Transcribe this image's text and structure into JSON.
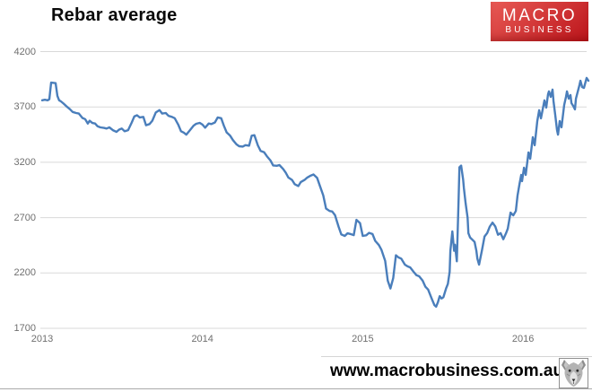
{
  "header": {
    "title": "Rebar average"
  },
  "logo": {
    "line1": "MACRO",
    "line2": "BUSINESS",
    "bg_gradient_from": "#e85a55",
    "bg_gradient_to": "#bc151b",
    "text_color": "#ffffff"
  },
  "footer": {
    "website": "www.macrobusiness.com.au",
    "icon": "wolf-head-icon"
  },
  "chart_data": {
    "type": "line",
    "title": "Rebar average",
    "xlabel": "",
    "ylabel": "",
    "ylim": [
      1700,
      4200
    ],
    "xlim": [
      2013.0,
      2016.42
    ],
    "grid": "horizontal",
    "legend": "none",
    "gridline_color": "#d9d9d9",
    "axis_label_color": "#6f6f6f",
    "y_ticks": [
      4200,
      3700,
      3200,
      2700,
      2200,
      1700
    ],
    "x_ticks": [
      2013,
      2014,
      2015,
      2016
    ],
    "series": [
      {
        "name": "Rebar average",
        "color": "#4a7ebb",
        "points": [
          [
            2013.0,
            3760
          ],
          [
            2013.017,
            3765
          ],
          [
            2013.034,
            3760
          ],
          [
            2013.045,
            3770
          ],
          [
            2013.056,
            3920
          ],
          [
            2013.084,
            3915
          ],
          [
            2013.095,
            3800
          ],
          [
            2013.106,
            3760
          ],
          [
            2013.117,
            3750
          ],
          [
            2013.134,
            3730
          ],
          [
            2013.156,
            3700
          ],
          [
            2013.173,
            3680
          ],
          [
            2013.19,
            3655
          ],
          [
            2013.212,
            3645
          ],
          [
            2013.229,
            3640
          ],
          [
            2013.251,
            3600
          ],
          [
            2013.268,
            3590
          ],
          [
            2013.285,
            3550
          ],
          [
            2013.296,
            3575
          ],
          [
            2013.313,
            3555
          ],
          [
            2013.33,
            3550
          ],
          [
            2013.346,
            3525
          ],
          [
            2013.363,
            3515
          ],
          [
            2013.385,
            3510
          ],
          [
            2013.402,
            3505
          ],
          [
            2013.419,
            3515
          ],
          [
            2013.441,
            3490
          ],
          [
            2013.464,
            3475
          ],
          [
            2013.48,
            3495
          ],
          [
            2013.497,
            3505
          ],
          [
            2013.514,
            3480
          ],
          [
            2013.536,
            3490
          ],
          [
            2013.559,
            3560
          ],
          [
            2013.575,
            3615
          ],
          [
            2013.592,
            3625
          ],
          [
            2013.609,
            3605
          ],
          [
            2013.631,
            3610
          ],
          [
            2013.648,
            3535
          ],
          [
            2013.67,
            3545
          ],
          [
            2013.687,
            3575
          ],
          [
            2013.709,
            3650
          ],
          [
            2013.732,
            3672
          ],
          [
            2013.749,
            3640
          ],
          [
            2013.771,
            3645
          ],
          [
            2013.788,
            3620
          ],
          [
            2013.81,
            3610
          ],
          [
            2013.827,
            3598
          ],
          [
            2013.849,
            3540
          ],
          [
            2013.866,
            3480
          ],
          [
            2013.883,
            3468
          ],
          [
            2013.899,
            3450
          ],
          [
            2013.922,
            3490
          ],
          [
            2013.944,
            3530
          ],
          [
            2013.961,
            3548
          ],
          [
            2013.983,
            3556
          ],
          [
            2014.0,
            3540
          ],
          [
            2014.017,
            3512
          ],
          [
            2014.039,
            3550
          ],
          [
            2014.056,
            3545
          ],
          [
            2014.078,
            3560
          ],
          [
            2014.095,
            3605
          ],
          [
            2014.117,
            3598
          ],
          [
            2014.134,
            3530
          ],
          [
            2014.151,
            3470
          ],
          [
            2014.173,
            3440
          ],
          [
            2014.19,
            3400
          ],
          [
            2014.212,
            3362
          ],
          [
            2014.229,
            3345
          ],
          [
            2014.251,
            3342
          ],
          [
            2014.268,
            3355
          ],
          [
            2014.291,
            3350
          ],
          [
            2014.307,
            3440
          ],
          [
            2014.324,
            3445
          ],
          [
            2014.346,
            3352
          ],
          [
            2014.363,
            3302
          ],
          [
            2014.385,
            3290
          ],
          [
            2014.402,
            3255
          ],
          [
            2014.425,
            3215
          ],
          [
            2014.441,
            3172
          ],
          [
            2014.464,
            3168
          ],
          [
            2014.48,
            3175
          ],
          [
            2014.503,
            3140
          ],
          [
            2014.52,
            3105
          ],
          [
            2014.536,
            3062
          ],
          [
            2014.559,
            3040
          ],
          [
            2014.575,
            3002
          ],
          [
            2014.598,
            2985
          ],
          [
            2014.614,
            3022
          ],
          [
            2014.637,
            3040
          ],
          [
            2014.654,
            3062
          ],
          [
            2014.676,
            3080
          ],
          [
            2014.693,
            3090
          ],
          [
            2014.715,
            3060
          ],
          [
            2014.732,
            2990
          ],
          [
            2014.754,
            2900
          ],
          [
            2014.771,
            2782
          ],
          [
            2014.793,
            2760
          ],
          [
            2014.81,
            2755
          ],
          [
            2014.827,
            2722
          ],
          [
            2014.849,
            2620
          ],
          [
            2014.866,
            2548
          ],
          [
            2014.888,
            2535
          ],
          [
            2014.905,
            2558
          ],
          [
            2014.927,
            2550
          ],
          [
            2014.944,
            2542
          ],
          [
            2014.961,
            2680
          ],
          [
            2014.983,
            2650
          ],
          [
            2015.0,
            2535
          ],
          [
            2015.022,
            2540
          ],
          [
            2015.039,
            2562
          ],
          [
            2015.061,
            2552
          ],
          [
            2015.078,
            2490
          ],
          [
            2015.101,
            2452
          ],
          [
            2015.117,
            2408
          ],
          [
            2015.14,
            2310
          ],
          [
            2015.156,
            2130
          ],
          [
            2015.173,
            2060
          ],
          [
            2015.19,
            2155
          ],
          [
            2015.207,
            2360
          ],
          [
            2015.223,
            2340
          ],
          [
            2015.24,
            2330
          ],
          [
            2015.263,
            2275
          ],
          [
            2015.279,
            2260
          ],
          [
            2015.296,
            2250
          ],
          [
            2015.318,
            2210
          ],
          [
            2015.335,
            2180
          ],
          [
            2015.352,
            2170
          ],
          [
            2015.374,
            2130
          ],
          [
            2015.391,
            2075
          ],
          [
            2015.408,
            2050
          ],
          [
            2015.43,
            1970
          ],
          [
            2015.447,
            1910
          ],
          [
            2015.458,
            1895
          ],
          [
            2015.469,
            1935
          ],
          [
            2015.48,
            1990
          ],
          [
            2015.492,
            1970
          ],
          [
            2015.503,
            1980
          ],
          [
            2015.52,
            2060
          ],
          [
            2015.531,
            2100
          ],
          [
            2015.542,
            2210
          ],
          [
            2015.547,
            2400
          ],
          [
            2015.559,
            2575
          ],
          [
            2015.57,
            2400
          ],
          [
            2015.575,
            2455
          ],
          [
            2015.587,
            2305
          ],
          [
            2015.598,
            2870
          ],
          [
            2015.603,
            3155
          ],
          [
            2015.614,
            3170
          ],
          [
            2015.626,
            3046
          ],
          [
            2015.631,
            2965
          ],
          [
            2015.642,
            2830
          ],
          [
            2015.654,
            2700
          ],
          [
            2015.659,
            2560
          ],
          [
            2015.67,
            2520
          ],
          [
            2015.681,
            2505
          ],
          [
            2015.698,
            2480
          ],
          [
            2015.709,
            2400
          ],
          [
            2015.715,
            2330
          ],
          [
            2015.726,
            2275
          ],
          [
            2015.743,
            2400
          ],
          [
            2015.76,
            2530
          ],
          [
            2015.776,
            2560
          ],
          [
            2015.793,
            2620
          ],
          [
            2015.81,
            2655
          ],
          [
            2015.827,
            2620
          ],
          [
            2015.844,
            2545
          ],
          [
            2015.86,
            2560
          ],
          [
            2015.877,
            2505
          ],
          [
            2015.894,
            2560
          ],
          [
            2015.905,
            2600
          ],
          [
            2015.922,
            2745
          ],
          [
            2015.939,
            2720
          ],
          [
            2015.955,
            2760
          ],
          [
            2015.966,
            2900
          ],
          [
            2015.978,
            3005
          ],
          [
            2015.989,
            3086
          ],
          [
            2015.994,
            3030
          ],
          [
            2016.006,
            3151
          ],
          [
            2016.017,
            3086
          ],
          [
            2016.034,
            3289
          ],
          [
            2016.045,
            3232
          ],
          [
            2016.061,
            3426
          ],
          [
            2016.073,
            3354
          ],
          [
            2016.089,
            3572
          ],
          [
            2016.101,
            3670
          ],
          [
            2016.112,
            3597
          ],
          [
            2016.128,
            3718
          ],
          [
            2016.134,
            3759
          ],
          [
            2016.145,
            3694
          ],
          [
            2016.156,
            3815
          ],
          [
            2016.162,
            3840
          ],
          [
            2016.173,
            3791
          ],
          [
            2016.184,
            3856
          ],
          [
            2016.19,
            3751
          ],
          [
            2016.201,
            3629
          ],
          [
            2016.212,
            3491
          ],
          [
            2016.218,
            3450
          ],
          [
            2016.229,
            3572
          ],
          [
            2016.24,
            3516
          ],
          [
            2016.257,
            3718
          ],
          [
            2016.268,
            3791
          ],
          [
            2016.274,
            3840
          ],
          [
            2016.285,
            3775
          ],
          [
            2016.296,
            3807
          ],
          [
            2016.302,
            3734
          ],
          [
            2016.313,
            3710
          ],
          [
            2016.324,
            3678
          ],
          [
            2016.33,
            3775
          ],
          [
            2016.352,
            3897
          ],
          [
            2016.358,
            3937
          ],
          [
            2016.369,
            3880
          ],
          [
            2016.38,
            3872
          ],
          [
            2016.397,
            3962
          ],
          [
            2016.408,
            3937
          ]
        ]
      }
    ]
  }
}
